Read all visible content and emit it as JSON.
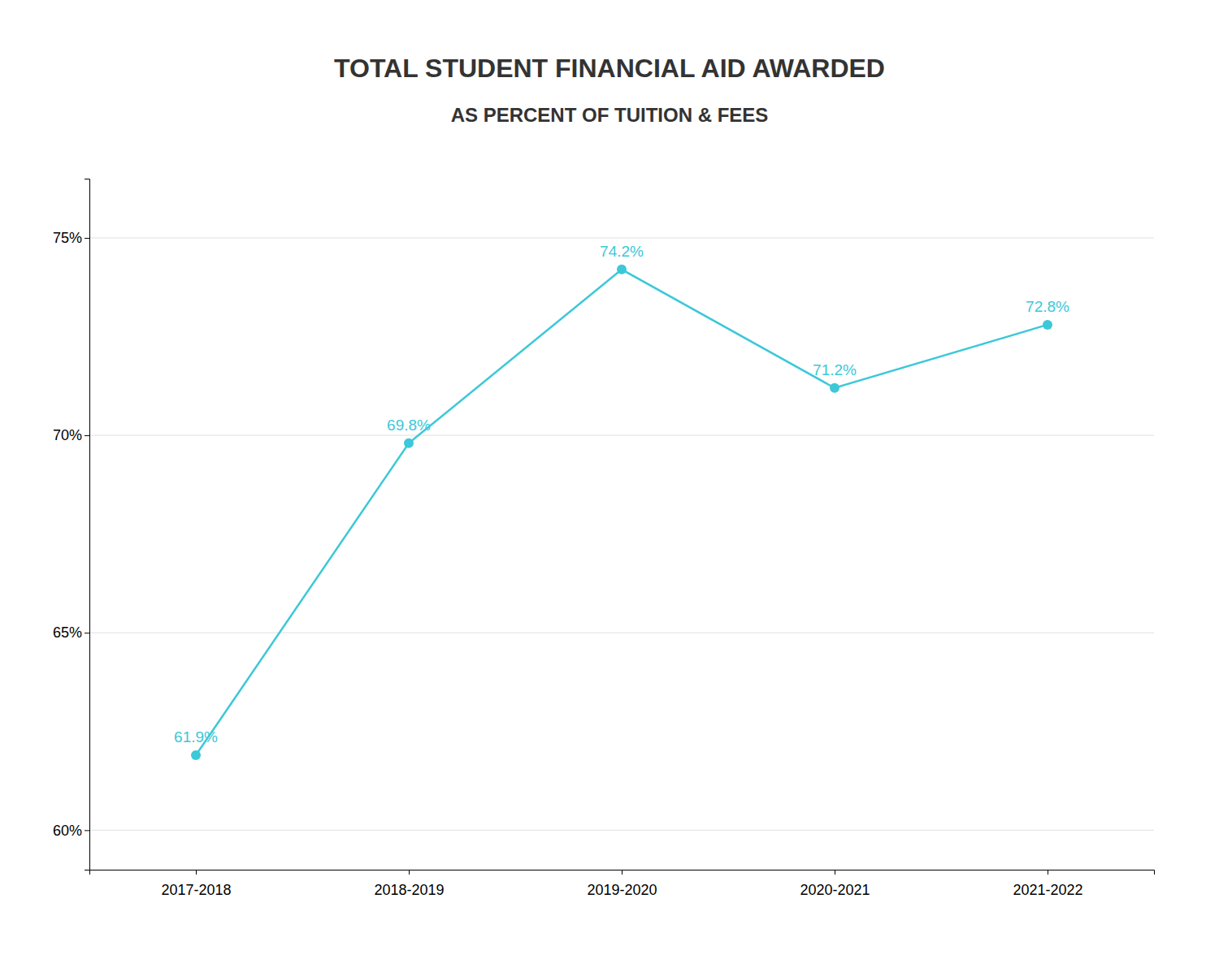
{
  "chart_data": {
    "type": "line",
    "title": "TOTAL STUDENT FINANCIAL AID AWARDED",
    "subtitle": "AS PERCENT OF TUITION & FEES",
    "categories": [
      "2017-2018",
      "2018-2019",
      "2019-2020",
      "2020-2021",
      "2021-2022"
    ],
    "values": [
      61.9,
      69.8,
      74.2,
      71.2,
      72.8
    ],
    "value_labels": [
      "61.9%",
      "69.8%",
      "74.2%",
      "71.2%",
      "72.8%"
    ],
    "color": "#3CC8D8",
    "marker": "circle",
    "ylim": [
      59.0,
      76.5
    ],
    "yticks": [
      {
        "value": 60,
        "label": "60%"
      },
      {
        "value": 65,
        "label": "65%"
      },
      {
        "value": 70,
        "label": "70%"
      },
      {
        "value": 75,
        "label": "75%"
      }
    ],
    "grid": true,
    "data_labels": true
  }
}
